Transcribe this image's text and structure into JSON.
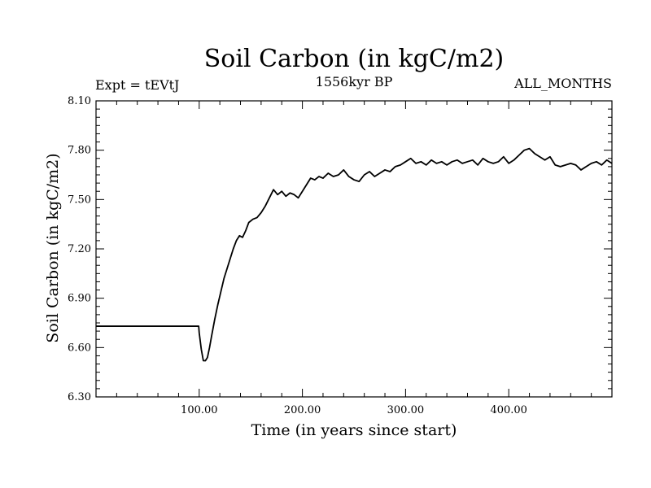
{
  "chart_data": {
    "type": "line",
    "title": "Soil Carbon (in kgC/m2)",
    "subtitle_left": "Expt = tEVtJ",
    "subtitle_center": "1556kyr BP",
    "subtitle_right": "ALL_MONTHS",
    "xlabel": "Time (in years since start)",
    "ylabel": "Soil Carbon (in kgC/m2)",
    "xlim": [
      0,
      500
    ],
    "ylim": [
      6.3,
      8.1
    ],
    "xticks": [
      100,
      200,
      300,
      400
    ],
    "xtick_labels": [
      "100.00",
      "200.00",
      "300.00",
      "400.00"
    ],
    "yticks": [
      6.3,
      6.6,
      6.9,
      7.2,
      7.5,
      7.8,
      8.1
    ],
    "ytick_labels": [
      "6.30",
      "6.60",
      "6.90",
      "7.20",
      "7.50",
      "7.80",
      "8.10"
    ],
    "series": [
      {
        "name": "Soil Carbon",
        "x": [
          0,
          99.5,
          100,
          102,
          104,
          106,
          108,
          110,
          112,
          115,
          118,
          121,
          124,
          127,
          130,
          133,
          136,
          139,
          142,
          145,
          148,
          152,
          156,
          160,
          164,
          168,
          172,
          176,
          180,
          184,
          188,
          192,
          196,
          200,
          204,
          208,
          212,
          216,
          220,
          225,
          230,
          235,
          240,
          245,
          250,
          255,
          260,
          265,
          270,
          275,
          280,
          285,
          290,
          295,
          300,
          305,
          310,
          315,
          320,
          325,
          330,
          335,
          340,
          345,
          350,
          355,
          360,
          365,
          370,
          375,
          380,
          385,
          390,
          395,
          400,
          405,
          410,
          415,
          420,
          425,
          430,
          435,
          440,
          445,
          450,
          455,
          460,
          465,
          470,
          475,
          480,
          485,
          490,
          495,
          500
        ],
        "values": [
          6.73,
          6.73,
          6.69,
          6.59,
          6.52,
          6.52,
          6.54,
          6.6,
          6.67,
          6.77,
          6.86,
          6.94,
          7.02,
          7.08,
          7.14,
          7.2,
          7.25,
          7.28,
          7.27,
          7.31,
          7.36,
          7.38,
          7.39,
          7.42,
          7.46,
          7.51,
          7.56,
          7.53,
          7.55,
          7.52,
          7.54,
          7.53,
          7.51,
          7.55,
          7.59,
          7.63,
          7.62,
          7.64,
          7.63,
          7.66,
          7.64,
          7.65,
          7.68,
          7.64,
          7.62,
          7.61,
          7.65,
          7.67,
          7.64,
          7.66,
          7.68,
          7.67,
          7.7,
          7.71,
          7.73,
          7.75,
          7.72,
          7.73,
          7.71,
          7.74,
          7.72,
          7.73,
          7.71,
          7.73,
          7.74,
          7.72,
          7.73,
          7.74,
          7.71,
          7.75,
          7.73,
          7.72,
          7.73,
          7.76,
          7.72,
          7.74,
          7.77,
          7.8,
          7.81,
          7.78,
          7.76,
          7.74,
          7.76,
          7.71,
          7.7,
          7.71,
          7.72,
          7.71,
          7.68,
          7.7,
          7.72,
          7.73,
          7.71,
          7.74,
          7.72
        ]
      }
    ]
  }
}
